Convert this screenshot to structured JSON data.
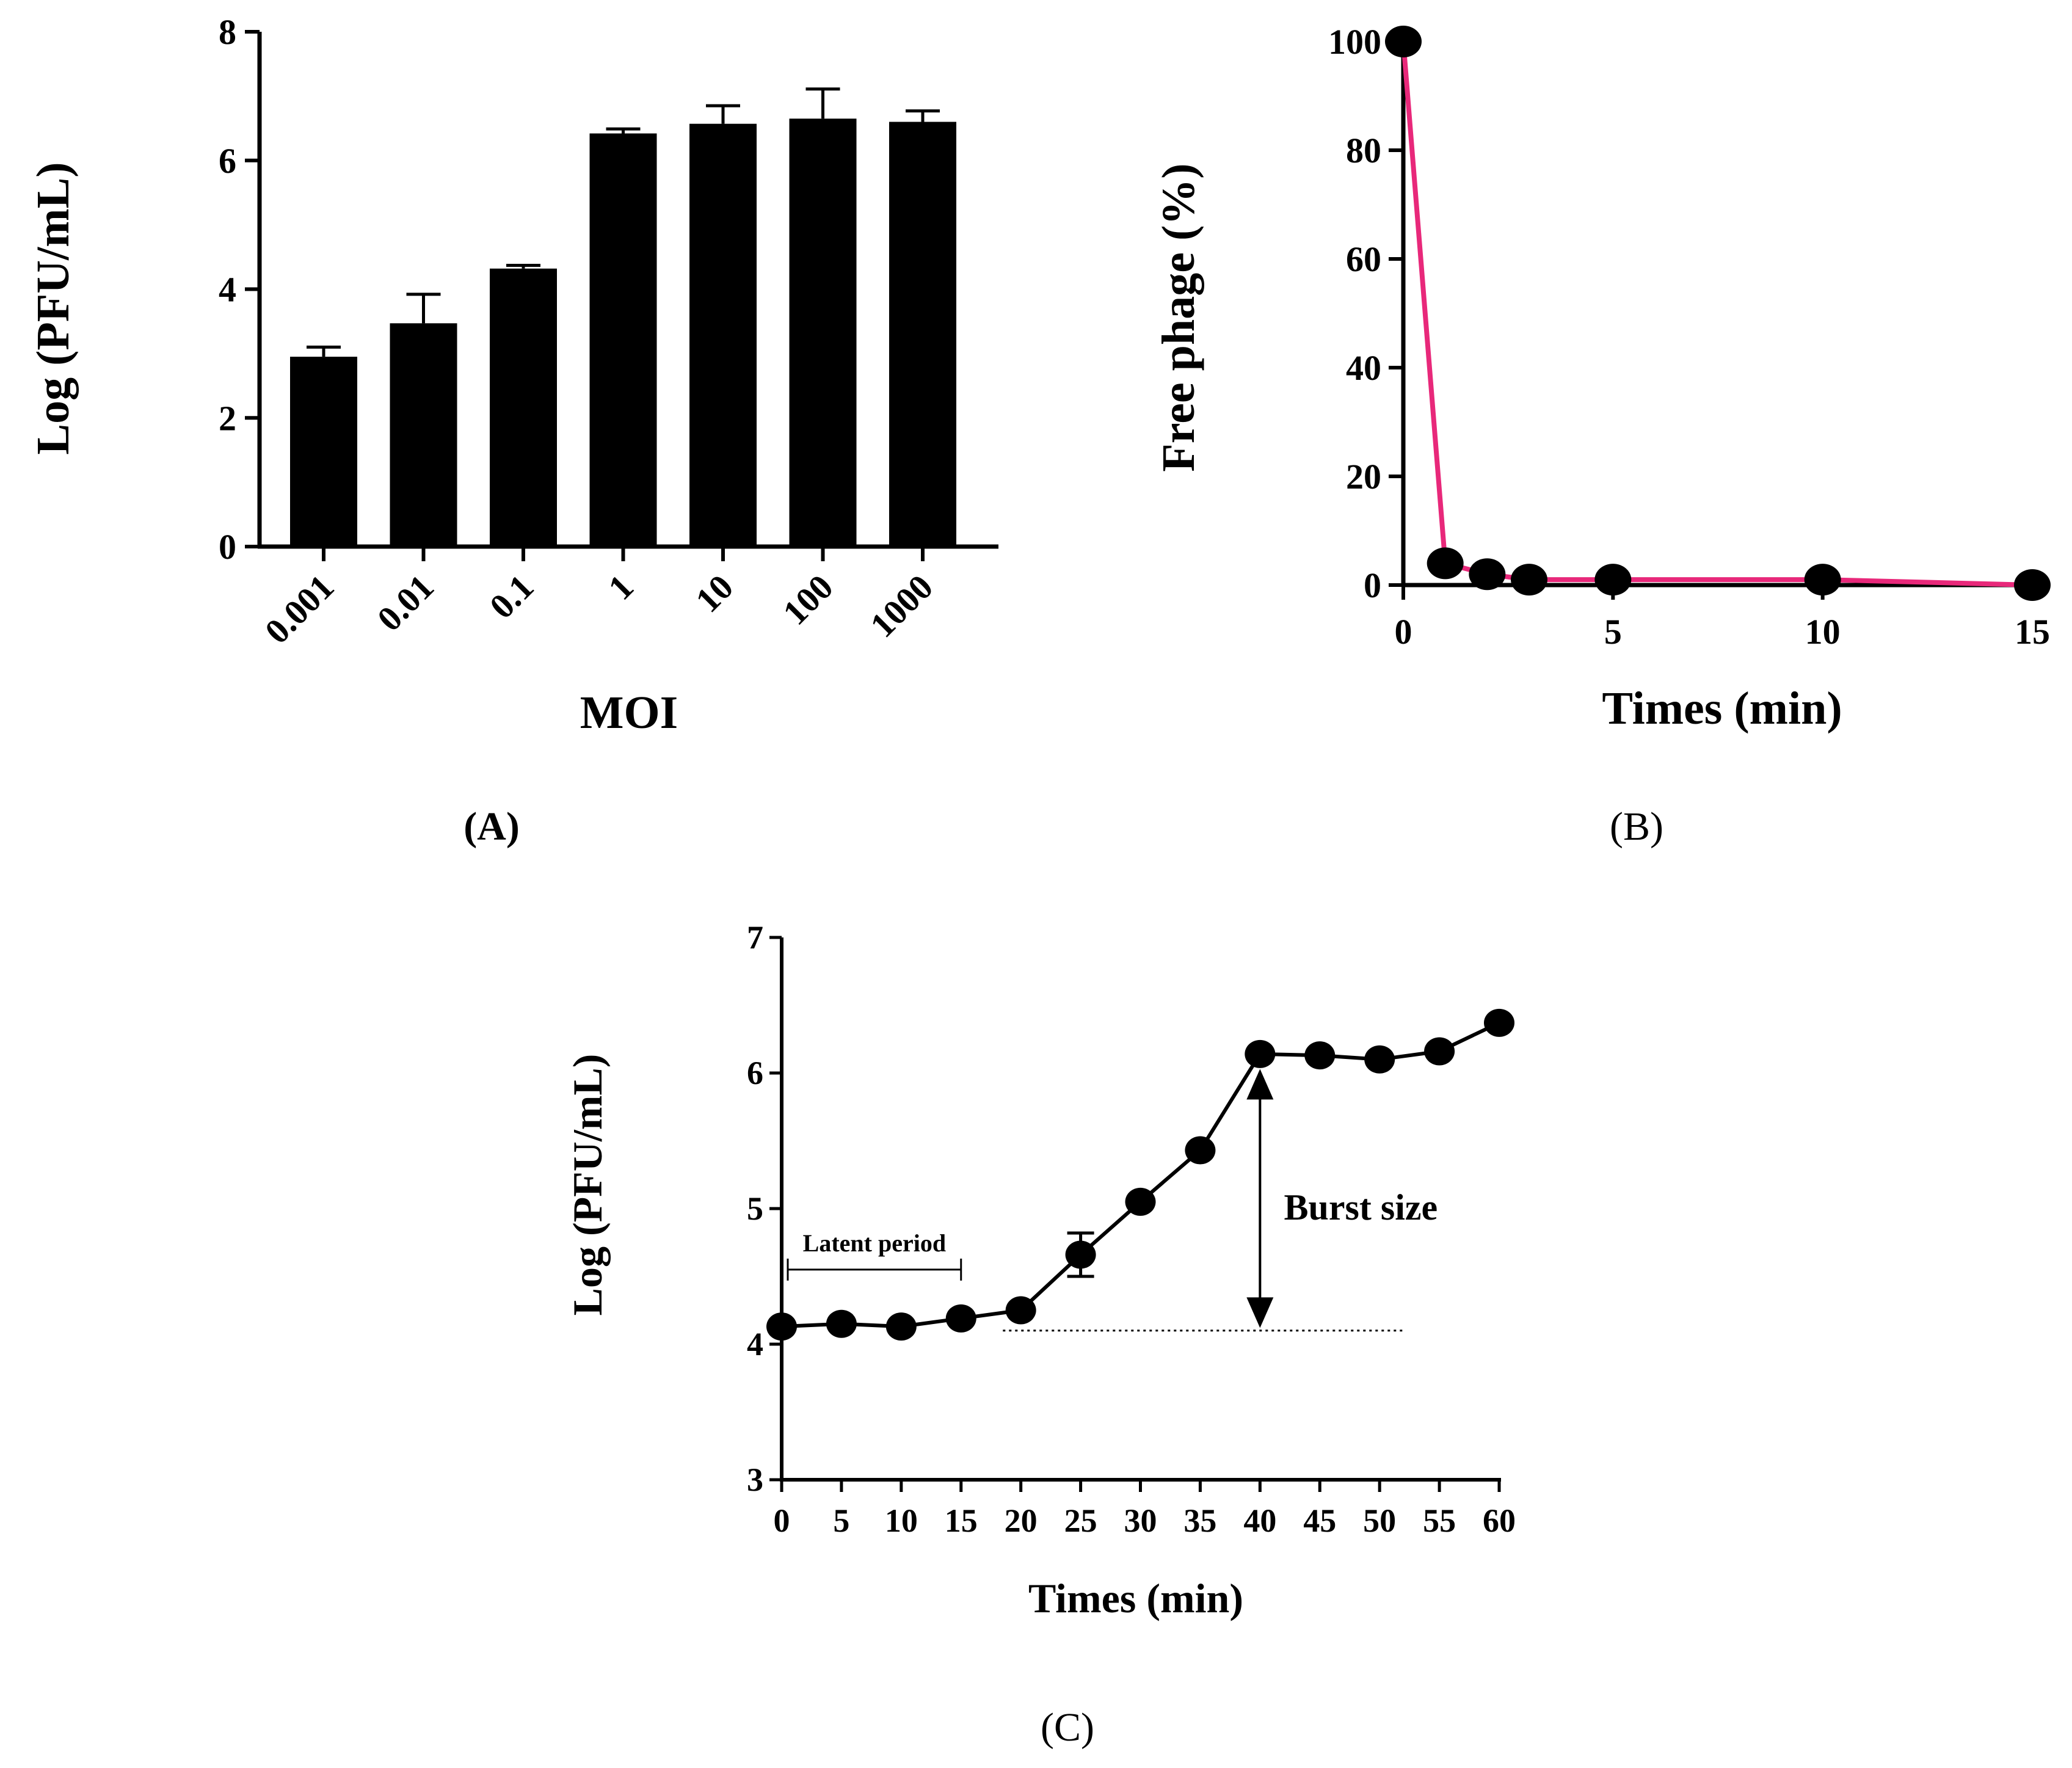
{
  "chart_data": [
    {
      "panel": "A",
      "type": "bar",
      "categories": [
        "0.001",
        "0.01",
        "0.1",
        "1",
        "10",
        "100",
        "1000"
      ],
      "values": [
        2.95,
        3.47,
        4.32,
        6.42,
        6.57,
        6.65,
        6.6
      ],
      "error": [
        0.15,
        0.45,
        0.05,
        0.07,
        0.28,
        0.46,
        0.17
      ],
      "xlabel": "MOI",
      "ylabel": "Log (PFU/mL)",
      "ylim": [
        0,
        8
      ],
      "yticks": [
        "0",
        "2",
        "4",
        "6",
        "8"
      ],
      "bar_color": "#000000",
      "grid": false
    },
    {
      "panel": "B",
      "type": "line",
      "x": [
        0,
        1,
        2,
        3,
        5,
        10,
        15
      ],
      "y": [
        100,
        4,
        2,
        1,
        1,
        1,
        0
      ],
      "xlabel": "Times (min)",
      "ylabel": "Free phage (%)",
      "xlim": [
        0,
        15
      ],
      "ylim": [
        0,
        100
      ],
      "xticks": [
        "0",
        "5",
        "10",
        "15"
      ],
      "yticks": [
        "0",
        "20",
        "40",
        "60",
        "80",
        "100"
      ],
      "line_color": "#e8287a",
      "marker_color": "#000000",
      "grid": false
    },
    {
      "panel": "C",
      "type": "line",
      "x": [
        0,
        5,
        10,
        15,
        20,
        25,
        30,
        35,
        40,
        45,
        50,
        55,
        60
      ],
      "y": [
        4.13,
        4.15,
        4.13,
        4.19,
        4.25,
        4.66,
        5.05,
        5.43,
        6.14,
        6.13,
        6.1,
        6.16,
        6.37
      ],
      "error": [
        0,
        0,
        0,
        0,
        0,
        0.16,
        0,
        0,
        0,
        0,
        0,
        0,
        0
      ],
      "xlabel": "Times (min)",
      "ylabel": "Log (PFU/mL)",
      "xlim": [
        0,
        60
      ],
      "ylim": [
        3,
        7
      ],
      "xticks": [
        "0",
        "5",
        "10",
        "15",
        "20",
        "25",
        "30",
        "35",
        "40",
        "45",
        "50",
        "55",
        "60"
      ],
      "yticks": [
        "3",
        "4",
        "5",
        "6",
        "7"
      ],
      "annotations": [
        "Latent period",
        "Burst size"
      ],
      "latent_period": [
        0,
        15
      ],
      "burst_baseline": 4.1,
      "grid": false
    }
  ],
  "labels": {
    "a": "(A)",
    "b": "(B)",
    "c": "(C)"
  }
}
